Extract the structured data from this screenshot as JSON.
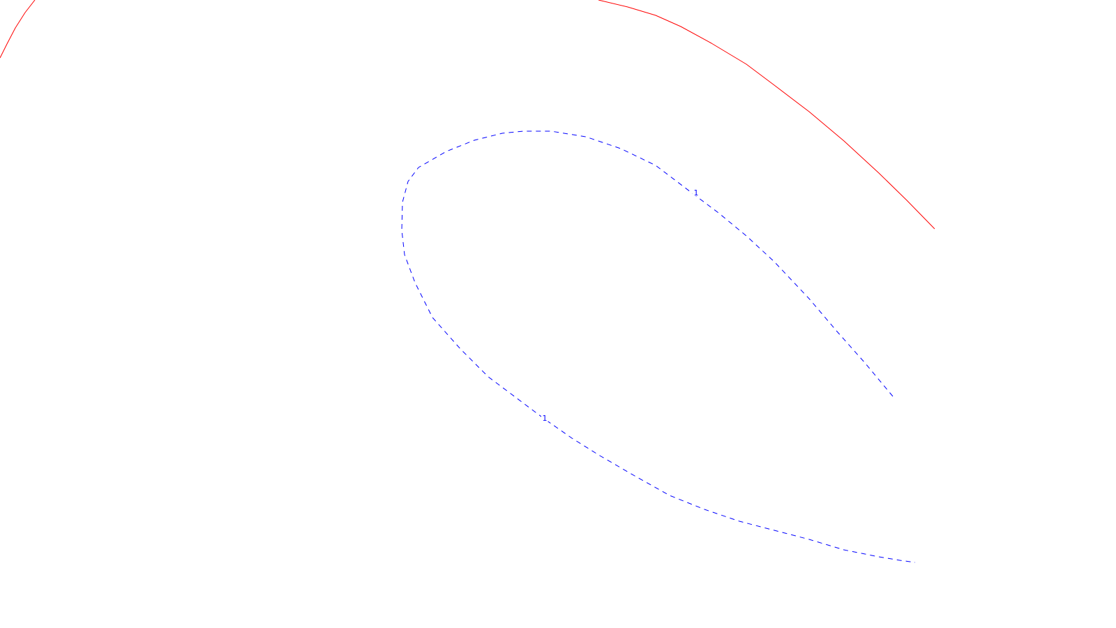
{
  "chart_data": {
    "type": "line",
    "title": "",
    "xlabel": "",
    "ylabel": "",
    "grid": false,
    "legend": false,
    "series": [
      {
        "style": "solid",
        "color": "#ff0000",
        "segments": [
          {
            "x": [
              0,
              10,
              22,
              36,
              50
            ],
            "y": [
              83,
              63,
              40,
              18,
              0
            ]
          },
          {
            "x": [
              858,
              900,
              940,
              976,
              1020,
              1070,
              1110,
              1160,
              1210,
              1260,
              1300,
              1340
            ],
            "y": [
              0,
              10,
              22,
              38,
              62,
              92,
              122,
              160,
              202,
              248,
              287,
              328
            ]
          }
        ]
      },
      {
        "style": "dashed",
        "color": "#0000ff",
        "segments": [
          {
            "x": [
              1280,
              1240,
              1200,
              1160,
              1110,
              1070,
              1030,
              990,
              940,
              890,
              840,
              790,
              750,
              720,
              680,
              640,
              600,
              585,
              577,
              576,
              580,
              595,
              620,
              660,
              700,
              740,
              780,
              820,
              860,
              910,
              960,
              1010,
              1060,
              1110,
              1160,
              1210,
              1260,
              1290,
              1312
            ],
            "y": [
              568,
              520,
              475,
              428,
              375,
              338,
              305,
              275,
              237,
              213,
              196,
              188,
              188,
              191,
              201,
              217,
              240,
              260,
              290,
              330,
              365,
              405,
              455,
              500,
              540,
              570,
              600,
              628,
              653,
              682,
              710,
              730,
              747,
              760,
              773,
              788,
              798,
              803,
              806
            ]
          }
        ]
      }
    ],
    "labels": [
      {
        "text": "1",
        "x": 998,
        "y": 276,
        "color": "#0000ff"
      },
      {
        "text": "1",
        "x": 781,
        "y": 599,
        "color": "#0000ff"
      }
    ]
  }
}
